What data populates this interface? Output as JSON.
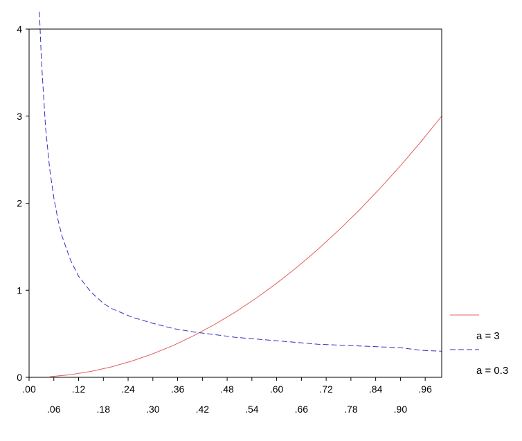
{
  "chart_data": {
    "type": "line",
    "title": "",
    "xlabel": "",
    "ylabel": "",
    "xlim": [
      0.0,
      1.0
    ],
    "ylim": [
      0,
      4
    ],
    "grid": false,
    "legend_placement": "right",
    "y_ticks": [
      {
        "value": 0,
        "label": "0"
      },
      {
        "value": 1,
        "label": "1"
      },
      {
        "value": 2,
        "label": "2"
      },
      {
        "value": 3,
        "label": "3"
      },
      {
        "value": 4,
        "label": "4"
      }
    ],
    "x_ticks_top": [
      {
        "value": 0.0,
        "label": ".00"
      },
      {
        "value": 0.12,
        "label": ".12"
      },
      {
        "value": 0.24,
        "label": ".24"
      },
      {
        "value": 0.36,
        "label": ".36"
      },
      {
        "value": 0.48,
        "label": ".48"
      },
      {
        "value": 0.6,
        "label": ".60"
      },
      {
        "value": 0.72,
        "label": ".72"
      },
      {
        "value": 0.84,
        "label": ".84"
      },
      {
        "value": 0.96,
        "label": ".96"
      }
    ],
    "x_ticks_bottom": [
      {
        "value": 0.06,
        "label": ".06"
      },
      {
        "value": 0.18,
        "label": ".18"
      },
      {
        "value": 0.3,
        "label": ".30"
      },
      {
        "value": 0.42,
        "label": ".42"
      },
      {
        "value": 0.54,
        "label": ".54"
      },
      {
        "value": 0.66,
        "label": ".66"
      },
      {
        "value": 0.78,
        "label": ".78"
      },
      {
        "value": 0.9,
        "label": ".90"
      }
    ],
    "series": [
      {
        "name": "a = 3",
        "color": "#e06060",
        "style": "solid",
        "x": [
          0.05,
          0.1,
          0.15,
          0.2,
          0.25,
          0.3,
          0.35,
          0.4,
          0.45,
          0.5,
          0.55,
          0.6,
          0.65,
          0.7,
          0.75,
          0.8,
          0.85,
          0.9,
          0.95,
          1.0
        ],
        "y": [
          0.0075,
          0.03,
          0.0675,
          0.12,
          0.1875,
          0.27,
          0.3675,
          0.48,
          0.6075,
          0.75,
          0.9075,
          1.08,
          1.2675,
          1.47,
          1.6875,
          1.92,
          2.1675,
          2.43,
          2.7075,
          3.0
        ]
      },
      {
        "name": "a = 0.3",
        "color": "#3030c0",
        "style": "dashed",
        "x": [
          0.025,
          0.03,
          0.04,
          0.05,
          0.06,
          0.07,
          0.08,
          0.1,
          0.12,
          0.15,
          0.18,
          0.2,
          0.25,
          0.3,
          0.35,
          0.4,
          0.45,
          0.5,
          0.55,
          0.6,
          0.65,
          0.7,
          0.75,
          0.8,
          0.85,
          0.9,
          0.95,
          1.0
        ],
        "y": [
          4.2,
          3.63,
          2.87,
          2.39,
          2.06,
          1.81,
          1.62,
          1.35,
          1.16,
          0.98,
          0.85,
          0.79,
          0.69,
          0.62,
          0.56,
          0.52,
          0.49,
          0.46,
          0.44,
          0.42,
          0.4,
          0.38,
          0.37,
          0.36,
          0.35,
          0.34,
          0.31,
          0.3
        ]
      }
    ],
    "legend": [
      {
        "label": "a = 3",
        "color": "#e06060",
        "style": "solid"
      },
      {
        "label": "a = 0.3",
        "color": "#3030c0",
        "style": "dashed"
      }
    ]
  }
}
